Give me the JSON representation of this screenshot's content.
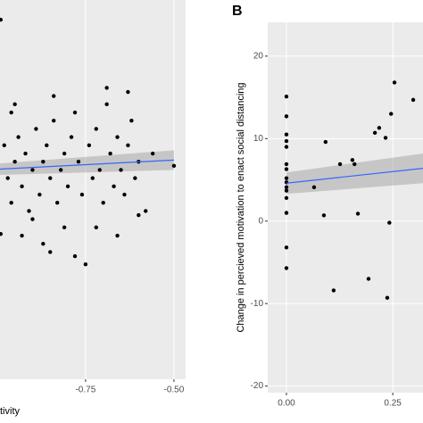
{
  "chart_data": [
    {
      "type": "scatter",
      "x_label": "tivity",
      "xlim": [
        -0.992,
        -0.467
      ],
      "xticks": [
        -0.75,
        {
          "value": -0.5,
          "label": "-0.50"
        }
      ],
      "ylim": [
        -19.5,
        26.7
      ],
      "color": "#000000",
      "line_color": "#3366ff",
      "grid": true,
      "x": [
        -0.99,
        -0.98,
        -0.97,
        -0.96,
        -0.95,
        -0.94,
        -0.93,
        -0.92,
        -0.91,
        -0.9,
        -0.89,
        -0.88,
        -0.87,
        -0.86,
        -0.85,
        -0.84,
        -0.83,
        -0.82,
        -0.81,
        -0.8,
        -0.79,
        -0.78,
        -0.77,
        -0.76,
        -0.75,
        -0.74,
        -0.73,
        -0.72,
        -0.71,
        -0.7,
        -0.69,
        -0.68,
        -0.67,
        -0.66,
        -0.65,
        -0.64,
        -0.63,
        -0.62,
        -0.61,
        -0.6,
        -0.58,
        -0.56,
        -0.5,
        -0.99,
        -0.96,
        -0.93,
        -0.9,
        -0.87,
        -0.84,
        -0.81,
        -0.78,
        -0.72,
        -0.69,
        -0.66,
        -0.63,
        -0.6,
        -0.85,
        -0.95
      ],
      "y": [
        24.3,
        9,
        5,
        2,
        7,
        10,
        4,
        8,
        1,
        6,
        11,
        3,
        7,
        9,
        5,
        12,
        2,
        6,
        8,
        4,
        10,
        13,
        7,
        3,
        -5.5,
        9,
        5,
        11,
        6,
        2,
        14,
        8,
        4,
        10,
        6,
        3,
        9,
        12,
        5,
        7,
        1,
        8,
        6.5,
        -1.8,
        13,
        -2,
        0,
        -3,
        15,
        -1,
        -4.5,
        -1,
        16,
        -2,
        15.5,
        0.5,
        -4,
        14
      ],
      "fit": {
        "x": [
          -0.992,
          -0.5
        ],
        "y": [
          6.1,
          7.2
        ],
        "lower": [
          5.4,
          6.0
        ],
        "upper": [
          6.8,
          8.4
        ]
      }
    },
    {
      "type": "scatter",
      "panel_label": "B",
      "y_label": "Change in percieved motivation to enact social distancing",
      "xlim": [
        -0.044,
        0.321
      ],
      "xticks": [
        {
          "value": 0,
          "label": "0.00"
        },
        0.25
      ],
      "ylim": [
        -20.8,
        24.1
      ],
      "yticks": [
        -20,
        -10,
        0,
        10,
        20
      ],
      "color": "#000000",
      "line_color": "#3366ff",
      "grid": true,
      "x": [
        0,
        0,
        0,
        0,
        0,
        0,
        0,
        0,
        0,
        0,
        0,
        0,
        0,
        0,
        0,
        0.092,
        0.065,
        0.088,
        0.111,
        0.126,
        0.155,
        0.16,
        0.168,
        0.193,
        0.208,
        0.218,
        0.233,
        0.242,
        0.246,
        0.237,
        0.254,
        0.298
      ],
      "y": [
        15.1,
        12.7,
        10.5,
        9.7,
        9,
        6.9,
        6.3,
        5.2,
        4.7,
        4.1,
        3.7,
        2.8,
        1,
        -3.2,
        -5.7,
        9.6,
        4.1,
        0.7,
        -8.4,
        6.9,
        7.4,
        6.9,
        0.9,
        -7,
        10.7,
        11.3,
        10.1,
        -0.2,
        13,
        -9.3,
        16.8,
        14.7
      ],
      "fit": {
        "x": [
          0,
          0.321
        ],
        "y": [
          4.6,
          6.4
        ],
        "lower": [
          3.3,
          4.6
        ],
        "upper": [
          5.9,
          8.2
        ]
      }
    }
  ]
}
